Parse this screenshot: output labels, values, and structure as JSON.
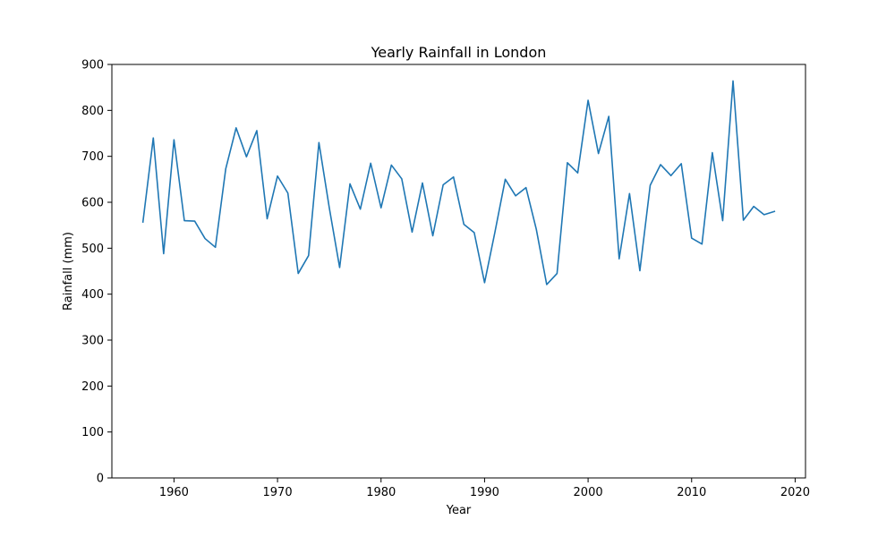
{
  "chart_data": {
    "type": "line",
    "title": "Yearly Rainfall in London",
    "xlabel": "Year",
    "ylabel": "Rainfall (mm)",
    "xlim": [
      1954,
      2021
    ],
    "ylim": [
      0,
      900
    ],
    "xticks": [
      1960,
      1970,
      1980,
      1990,
      2000,
      2010,
      2020
    ],
    "yticks": [
      0,
      100,
      200,
      300,
      400,
      500,
      600,
      700,
      800,
      900
    ],
    "grid": false,
    "series": [
      {
        "color": "#1f77b4",
        "x": [
          1957,
          1958,
          1959,
          1960,
          1961,
          1962,
          1963,
          1964,
          1965,
          1966,
          1967,
          1968,
          1969,
          1970,
          1971,
          1972,
          1973,
          1974,
          1975,
          1976,
          1977,
          1978,
          1979,
          1980,
          1981,
          1982,
          1983,
          1984,
          1985,
          1986,
          1987,
          1988,
          1989,
          1990,
          1991,
          1992,
          1993,
          1994,
          1995,
          1996,
          1997,
          1998,
          1999,
          2000,
          2001,
          2002,
          2003,
          2004,
          2005,
          2006,
          2007,
          2008,
          2009,
          2010,
          2011,
          2012,
          2013,
          2014,
          2015,
          2016,
          2017,
          2018
        ],
        "values": [
          557,
          740,
          488,
          736,
          560,
          559,
          521,
          502,
          673,
          762,
          699,
          756,
          564,
          657,
          620,
          445,
          484,
          730,
          588,
          458,
          640,
          585,
          685,
          588,
          681,
          651,
          535,
          642,
          527,
          638,
          655,
          552,
          534,
          425,
          535,
          650,
          614,
          632,
          541,
          421,
          445,
          686,
          664,
          822,
          706,
          787,
          477,
          619,
          451,
          637,
          682,
          658,
          684,
          522,
          509,
          708,
          560,
          864,
          561,
          591,
          573,
          580
        ]
      }
    ]
  }
}
